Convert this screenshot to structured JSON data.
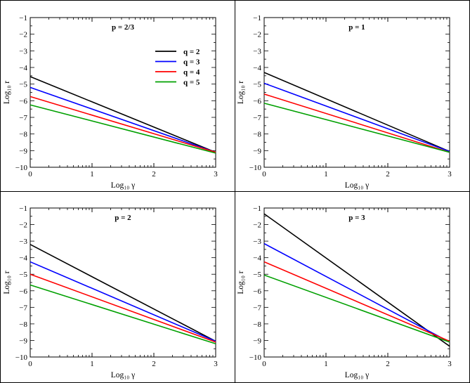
{
  "chart_data": [
    {
      "type": "line",
      "title": "p = 2/3",
      "xlabel": "Log₁₀ γ",
      "ylabel": "Log₁₀ r",
      "xlim": [
        0,
        3
      ],
      "ylim": [
        -10,
        -1
      ],
      "xticks": [
        "0",
        "1",
        "2",
        "3"
      ],
      "yticks": [
        "−1",
        "−2",
        "−3",
        "−4",
        "−5",
        "−6",
        "−7",
        "−8",
        "−9",
        "−10"
      ],
      "x_scale": "log-decade minor ticks",
      "legend": "top-right",
      "series": [
        {
          "name": "q = 2",
          "color": "#000000",
          "x": [
            0,
            3
          ],
          "y": [
            -4.55,
            -9.1
          ]
        },
        {
          "name": "q = 3",
          "color": "#0000ff",
          "x": [
            0,
            3
          ],
          "y": [
            -5.2,
            -9.1
          ]
        },
        {
          "name": "q = 4",
          "color": "#ff0000",
          "x": [
            0,
            3
          ],
          "y": [
            -5.75,
            -9.1
          ]
        },
        {
          "name": "q = 5",
          "color": "#00a000",
          "x": [
            0,
            3
          ],
          "y": [
            -6.25,
            -9.15
          ]
        }
      ]
    },
    {
      "type": "line",
      "title": "p = 1",
      "xlabel": "Log₁₀ γ",
      "ylabel": "Log₁₀ r",
      "xlim": [
        0,
        3
      ],
      "ylim": [
        -10,
        -1
      ],
      "xticks": [
        "0",
        "1",
        "2",
        "3"
      ],
      "yticks": [
        "−1",
        "−2",
        "−3",
        "−4",
        "−5",
        "−6",
        "−7",
        "−8",
        "−9",
        "−10"
      ],
      "x_scale": "log-decade minor ticks",
      "series": [
        {
          "name": "q = 2",
          "color": "#000000",
          "x": [
            0,
            3
          ],
          "y": [
            -4.3,
            -9.05
          ]
        },
        {
          "name": "q = 3",
          "color": "#0000ff",
          "x": [
            0,
            3
          ],
          "y": [
            -4.95,
            -9.05
          ]
        },
        {
          "name": "q = 4",
          "color": "#ff0000",
          "x": [
            0,
            3
          ],
          "y": [
            -5.6,
            -9.1
          ]
        },
        {
          "name": "q = 5",
          "color": "#00a000",
          "x": [
            0,
            3
          ],
          "y": [
            -6.15,
            -9.1
          ]
        }
      ]
    },
    {
      "type": "line",
      "title": "p = 2",
      "xlabel": "Log₁₀ γ",
      "ylabel": "Log₁₀ r",
      "xlim": [
        0,
        3
      ],
      "ylim": [
        -10,
        -1
      ],
      "xticks": [
        "0",
        "1",
        "2",
        "3"
      ],
      "yticks": [
        "−1",
        "−2",
        "−3",
        "−4",
        "−5",
        "−6",
        "−7",
        "−8",
        "−9",
        "−10"
      ],
      "x_scale": "log-decade minor ticks",
      "series": [
        {
          "name": "q = 2",
          "color": "#000000",
          "x": [
            0,
            3
          ],
          "y": [
            -3.2,
            -9.05
          ]
        },
        {
          "name": "q = 3",
          "color": "#0000ff",
          "x": [
            0,
            3
          ],
          "y": [
            -4.25,
            -9.05
          ]
        },
        {
          "name": "q = 4",
          "color": "#ff0000",
          "x": [
            0,
            3
          ],
          "y": [
            -5.0,
            -9.1
          ]
        },
        {
          "name": "q = 5",
          "color": "#00a000",
          "x": [
            0,
            3
          ],
          "y": [
            -5.65,
            -9.2
          ]
        }
      ]
    },
    {
      "type": "line",
      "title": "p = 3",
      "xlabel": "Log₁₀ γ",
      "ylabel": "Log₁₀ r",
      "xlim": [
        0,
        3
      ],
      "ylim": [
        -10,
        -1
      ],
      "xticks": [
        "0",
        "1",
        "2",
        "3"
      ],
      "yticks": [
        "−1",
        "−2",
        "−3",
        "−4",
        "−5",
        "−6",
        "−7",
        "−8",
        "−9",
        "−10"
      ],
      "x_scale": "log-decade minor ticks",
      "series": [
        {
          "name": "q = 2",
          "color": "#000000",
          "x": [
            0,
            3
          ],
          "y": [
            -1.35,
            -9.35
          ]
        },
        {
          "name": "q = 3",
          "color": "#0000ff",
          "x": [
            0,
            3
          ],
          "y": [
            -3.15,
            -9.1
          ]
        },
        {
          "name": "q = 4",
          "color": "#ff0000",
          "x": [
            0,
            3
          ],
          "y": [
            -4.25,
            -9.05
          ]
        },
        {
          "name": "q = 5",
          "color": "#00a000",
          "x": [
            0,
            3
          ],
          "y": [
            -5.05,
            -9.1
          ]
        }
      ]
    }
  ]
}
